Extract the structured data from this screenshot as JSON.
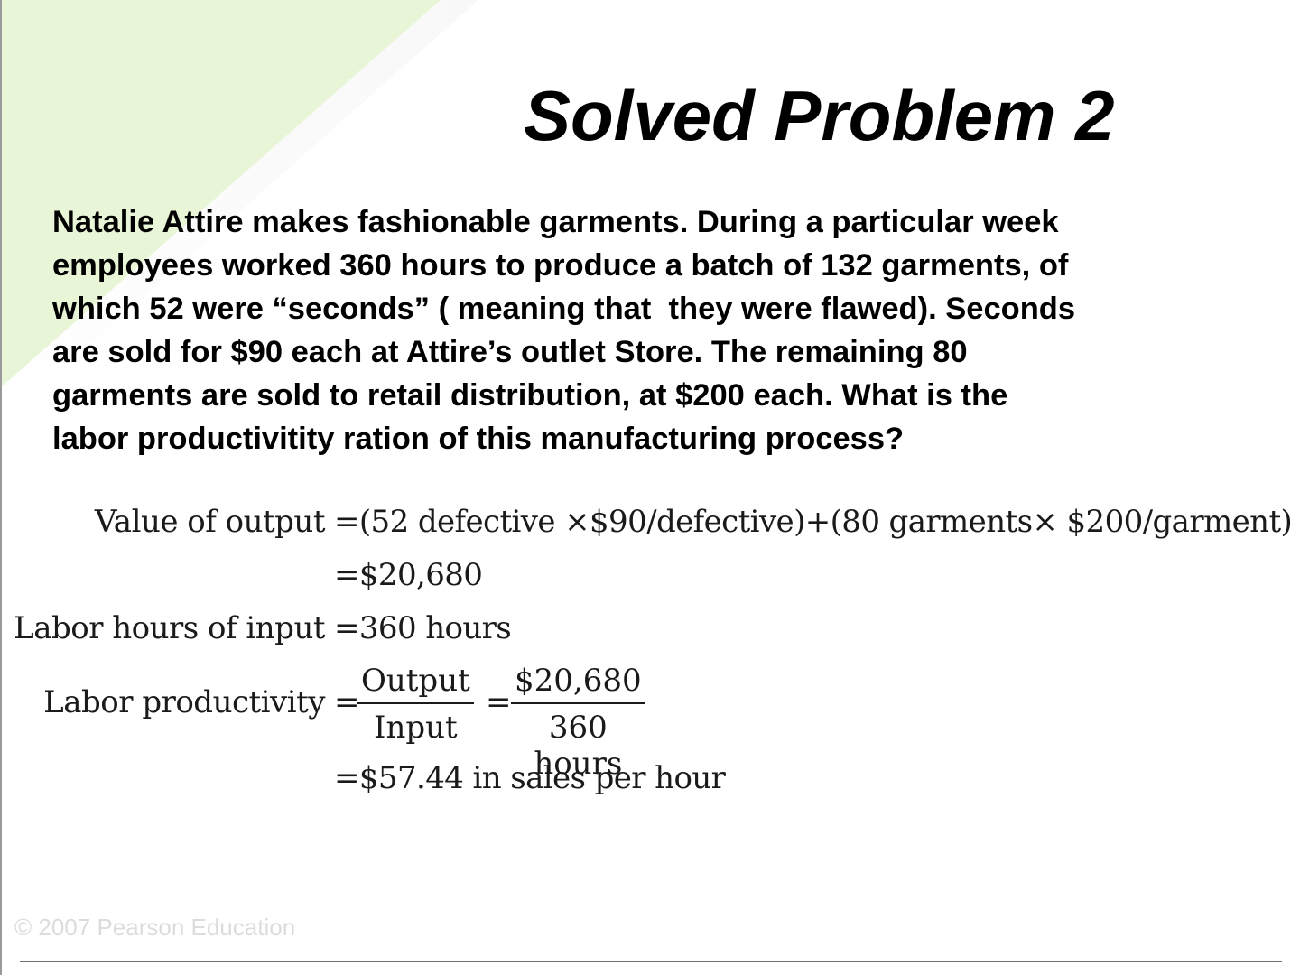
{
  "slide": {
    "title": "Solved Problem 2",
    "problem_lines": [
      "Natalie Attire makes fashionable garments. During a particular week",
      "employees worked 360 hours to produce a batch of 132 garments, of",
      "which 52 were “seconds” ( meaning that  they were flawed). Seconds",
      "are sold for $90 each at Attire’s outlet Store. The remaining 80",
      "garments are sold to retail distribution, at $200 each. What is the",
      "labor productivitity ration of this manufacturing process?"
    ],
    "solution": {
      "value_of_output_label": "Value of output",
      "value_of_output_expr": "=(52 defective ×$90/defective)+(80 garments× $200/garment)",
      "value_of_output_result": "=$20,680",
      "labor_hours_label": "Labor hours of input",
      "labor_hours_value": "=360 hours",
      "productivity_label": "Labor productivity",
      "eq1": "=",
      "frac1_num": "Output",
      "frac1_den": "Input",
      "eq2": "=",
      "frac2_num": "$20,680",
      "frac2_den": "360 hours",
      "productivity_result": "=$57.44 in sales per hour"
    },
    "footer": {
      "copyright": "© 2007 Pearson Education"
    },
    "colors": {
      "accent_green": "#e8f5d6",
      "background": "#ffffff",
      "text": "#000000"
    }
  }
}
